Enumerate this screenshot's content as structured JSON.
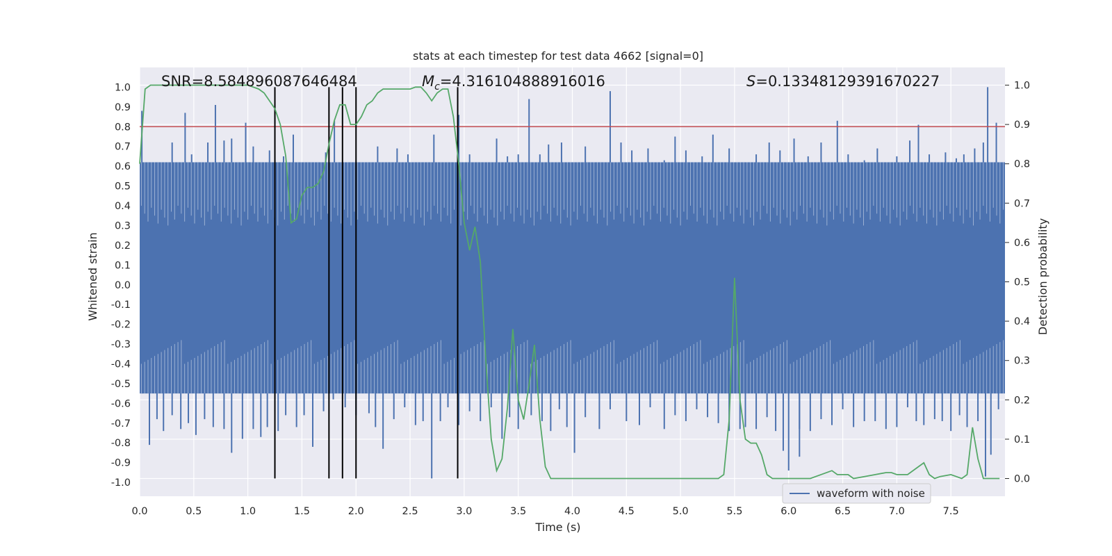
{
  "chart_data": {
    "type": "line",
    "title": "stats at each timestep for test data 4662 [signal=0]",
    "xlabel": "Time (s)",
    "ylabel": "Whitened strain",
    "y2label": "Detection probability",
    "xlim": [
      0.0,
      8.0
    ],
    "ylim": [
      -1.07,
      1.1
    ],
    "y2lim": [
      -0.045,
      1.045
    ],
    "xticks": [
      "0.0",
      "0.5",
      "1.0",
      "1.5",
      "2.0",
      "2.5",
      "3.0",
      "3.5",
      "4.0",
      "4.5",
      "5.0",
      "5.5",
      "6.0",
      "6.5",
      "7.0",
      "7.5"
    ],
    "yticks": [
      "1.0",
      "0.9",
      "0.8",
      "0.7",
      "0.6",
      "0.5",
      "0.4",
      "0.3",
      "0.2",
      "0.1",
      "0.0",
      "-0.1",
      "-0.2",
      "-0.3",
      "-0.4",
      "-0.5",
      "-0.6",
      "-0.7",
      "-0.8",
      "-0.9",
      "-1.0"
    ],
    "y2ticks": [
      "1.0",
      "0.9",
      "0.8",
      "0.7",
      "0.6",
      "0.5",
      "0.4",
      "0.3",
      "0.2",
      "0.1",
      "0.0"
    ],
    "annotations": {
      "snr": "SNR=8.584896087646484",
      "mc_symbol": "M",
      "mc_sub": "c",
      "mc_value": "=4.316104888916016",
      "s_symbol": "S",
      "s_value": "=0.13348129391670227"
    },
    "threshold": {
      "value": 0.8,
      "color": "#c44e52"
    },
    "event_lines": [
      1.25,
      1.75,
      1.875,
      2.0,
      2.94
    ],
    "legend": [
      {
        "label": "waveform with noise",
        "color": "#4c72b0"
      }
    ],
    "series": [
      {
        "name": "waveform with noise",
        "color": "#4c72b0",
        "envelope_high": 0.62,
        "envelope_low": -0.55,
        "spikes_up": [
          [
            0.02,
            0.88
          ],
          [
            0.1,
            0.58
          ],
          [
            0.17,
            0.62
          ],
          [
            0.23,
            0.55
          ],
          [
            0.3,
            0.72
          ],
          [
            0.37,
            0.6
          ],
          [
            0.42,
            0.87
          ],
          [
            0.48,
            0.66
          ],
          [
            0.55,
            0.62
          ],
          [
            0.63,
            0.72
          ],
          [
            0.7,
            0.91
          ],
          [
            0.78,
            0.73
          ],
          [
            0.85,
            0.74
          ],
          [
            0.92,
            0.62
          ],
          [
            0.98,
            0.82
          ],
          [
            1.05,
            0.7
          ],
          [
            1.12,
            0.61
          ],
          [
            1.2,
            0.68
          ],
          [
            1.28,
            0.55
          ],
          [
            1.33,
            0.65
          ],
          [
            1.42,
            0.76
          ],
          [
            1.5,
            0.57
          ],
          [
            1.58,
            0.61
          ],
          [
            1.65,
            0.58
          ],
          [
            1.72,
            0.67
          ],
          [
            1.8,
            0.83
          ],
          [
            1.86,
            0.62
          ],
          [
            1.95,
            0.6
          ],
          [
            2.02,
            0.55
          ],
          [
            2.1,
            0.58
          ],
          [
            2.2,
            0.7
          ],
          [
            2.3,
            0.62
          ],
          [
            2.38,
            0.69
          ],
          [
            2.48,
            0.66
          ],
          [
            2.55,
            0.62
          ],
          [
            2.62,
            0.57
          ],
          [
            2.72,
            0.76
          ],
          [
            2.8,
            0.61
          ],
          [
            2.9,
            0.57
          ],
          [
            2.95,
            0.86
          ],
          [
            3.05,
            0.66
          ],
          [
            3.15,
            0.59
          ],
          [
            3.3,
            0.74
          ],
          [
            3.4,
            0.65
          ],
          [
            3.5,
            0.66
          ],
          [
            3.6,
            0.94
          ],
          [
            3.7,
            0.66
          ],
          [
            3.78,
            0.71
          ],
          [
            3.9,
            0.72
          ],
          [
            4.0,
            0.62
          ],
          [
            4.12,
            0.7
          ],
          [
            4.22,
            0.62
          ],
          [
            4.35,
            0.98
          ],
          [
            4.45,
            0.72
          ],
          [
            4.55,
            0.68
          ],
          [
            4.7,
            0.69
          ],
          [
            4.85,
            0.63
          ],
          [
            4.95,
            0.75
          ],
          [
            5.05,
            0.68
          ],
          [
            5.2,
            0.65
          ],
          [
            5.3,
            0.76
          ],
          [
            5.45,
            0.69
          ],
          [
            5.6,
            0.62
          ],
          [
            5.7,
            0.66
          ],
          [
            5.82,
            0.72
          ],
          [
            5.92,
            0.68
          ],
          [
            6.05,
            0.74
          ],
          [
            6.18,
            0.65
          ],
          [
            6.3,
            0.72
          ],
          [
            6.45,
            0.83
          ],
          [
            6.55,
            0.66
          ],
          [
            6.7,
            0.63
          ],
          [
            6.82,
            0.69
          ],
          [
            6.9,
            0.62
          ],
          [
            7.0,
            0.65
          ],
          [
            7.12,
            0.73
          ],
          [
            7.2,
            0.81
          ],
          [
            7.3,
            0.66
          ],
          [
            7.45,
            0.67
          ],
          [
            7.55,
            0.64
          ],
          [
            7.62,
            0.66
          ],
          [
            7.72,
            0.69
          ],
          [
            7.8,
            0.72
          ],
          [
            7.84,
            1.0
          ],
          [
            7.92,
            0.82
          ],
          [
            7.97,
            0.6
          ]
        ],
        "spikes_down": [
          [
            0.02,
            -0.55
          ],
          [
            0.09,
            -0.81
          ],
          [
            0.16,
            -0.68
          ],
          [
            0.22,
            -0.74
          ],
          [
            0.3,
            -0.66
          ],
          [
            0.38,
            -0.73
          ],
          [
            0.45,
            -0.7
          ],
          [
            0.52,
            -0.76
          ],
          [
            0.6,
            -0.68
          ],
          [
            0.68,
            -0.72
          ],
          [
            0.78,
            -0.73
          ],
          [
            0.85,
            -0.85
          ],
          [
            0.95,
            -0.78
          ],
          [
            1.05,
            -0.73
          ],
          [
            1.12,
            -0.77
          ],
          [
            1.18,
            -0.72
          ],
          [
            1.28,
            -0.74
          ],
          [
            1.35,
            -0.66
          ],
          [
            1.45,
            -0.72
          ],
          [
            1.52,
            -0.66
          ],
          [
            1.6,
            -0.82
          ],
          [
            1.7,
            -0.64
          ],
          [
            1.79,
            -0.58
          ],
          [
            1.9,
            -0.62
          ],
          [
            2.0,
            -0.66
          ],
          [
            2.12,
            -0.65
          ],
          [
            2.18,
            -0.72
          ],
          [
            2.25,
            -0.83
          ],
          [
            2.35,
            -0.68
          ],
          [
            2.45,
            -0.62
          ],
          [
            2.55,
            -0.71
          ],
          [
            2.62,
            -0.69
          ],
          [
            2.7,
            -0.98
          ],
          [
            2.78,
            -0.69
          ],
          [
            2.85,
            -0.62
          ],
          [
            2.95,
            -0.71
          ],
          [
            3.05,
            -0.64
          ],
          [
            3.15,
            -0.69
          ],
          [
            3.25,
            -0.62
          ],
          [
            3.35,
            -0.78
          ],
          [
            3.42,
            -0.67
          ],
          [
            3.5,
            -0.73
          ],
          [
            3.62,
            -0.66
          ],
          [
            3.72,
            -0.69
          ],
          [
            3.8,
            -0.74
          ],
          [
            3.88,
            -0.63
          ],
          [
            3.95,
            -0.72
          ],
          [
            4.02,
            -0.85
          ],
          [
            4.12,
            -0.67
          ],
          [
            4.25,
            -0.73
          ],
          [
            4.35,
            -0.63
          ],
          [
            4.5,
            -0.69
          ],
          [
            4.62,
            -0.71
          ],
          [
            4.72,
            -0.62
          ],
          [
            4.85,
            -0.73
          ],
          [
            4.95,
            -0.66
          ],
          [
            5.05,
            -0.69
          ],
          [
            5.15,
            -0.63
          ],
          [
            5.25,
            -0.67
          ],
          [
            5.35,
            -0.7
          ],
          [
            5.45,
            -0.74
          ],
          [
            5.55,
            -0.73
          ],
          [
            5.6,
            -0.72
          ],
          [
            5.7,
            -0.73
          ],
          [
            5.8,
            -0.67
          ],
          [
            5.88,
            -0.74
          ],
          [
            5.95,
            -0.84
          ],
          [
            6.0,
            -0.94
          ],
          [
            6.1,
            -0.73
          ],
          [
            6.1,
            -0.87
          ],
          [
            6.2,
            -0.74
          ],
          [
            6.3,
            -0.68
          ],
          [
            6.4,
            -0.71
          ],
          [
            6.5,
            -0.63
          ],
          [
            6.6,
            -0.72
          ],
          [
            6.7,
            -0.69
          ],
          [
            6.8,
            -0.69
          ],
          [
            6.9,
            -0.73
          ],
          [
            7.0,
            -0.72
          ],
          [
            7.1,
            -0.62
          ],
          [
            7.18,
            -0.69
          ],
          [
            7.25,
            -0.71
          ],
          [
            7.35,
            -0.68
          ],
          [
            7.42,
            -0.69
          ],
          [
            7.5,
            -0.74
          ],
          [
            7.58,
            -0.66
          ],
          [
            7.65,
            -0.72
          ],
          [
            7.75,
            -0.69
          ],
          [
            7.82,
            -0.97
          ],
          [
            7.87,
            -0.86
          ],
          [
            7.94,
            -0.63
          ]
        ]
      },
      {
        "name": "detection probability",
        "axis": "right",
        "color": "#55a868",
        "x": [
          0.0,
          0.05,
          0.1,
          0.2,
          0.3,
          0.5,
          0.7,
          0.9,
          1.0,
          1.1,
          1.15,
          1.2,
          1.25,
          1.3,
          1.35,
          1.4,
          1.45,
          1.5,
          1.55,
          1.6,
          1.65,
          1.7,
          1.75,
          1.8,
          1.85,
          1.9,
          1.95,
          2.0,
          2.05,
          2.1,
          2.15,
          2.2,
          2.25,
          2.3,
          2.4,
          2.5,
          2.55,
          2.6,
          2.65,
          2.7,
          2.75,
          2.8,
          2.85,
          2.9,
          2.95,
          3.0,
          3.05,
          3.1,
          3.15,
          3.2,
          3.25,
          3.3,
          3.35,
          3.4,
          3.45,
          3.5,
          3.55,
          3.6,
          3.65,
          3.7,
          3.75,
          3.8,
          3.85,
          3.9,
          3.95,
          4.0,
          4.2,
          4.4,
          4.6,
          4.8,
          5.0,
          5.2,
          5.35,
          5.4,
          5.45,
          5.5,
          5.55,
          5.6,
          5.65,
          5.7,
          5.75,
          5.8,
          5.85,
          6.0,
          6.2,
          6.4,
          6.45,
          6.5,
          6.55,
          6.6,
          6.7,
          6.8,
          6.9,
          6.95,
          7.0,
          7.05,
          7.1,
          7.2,
          7.25,
          7.3,
          7.35,
          7.4,
          7.5,
          7.55,
          7.6,
          7.65,
          7.7,
          7.75,
          7.8,
          7.85,
          7.9,
          7.95
        ],
        "y": [
          0.8,
          0.99,
          1.0,
          1.0,
          1.0,
          1.0,
          1.0,
          1.0,
          1.0,
          0.99,
          0.98,
          0.96,
          0.94,
          0.9,
          0.82,
          0.65,
          0.66,
          0.72,
          0.74,
          0.74,
          0.75,
          0.78,
          0.85,
          0.91,
          0.95,
          0.95,
          0.9,
          0.9,
          0.92,
          0.95,
          0.96,
          0.98,
          0.99,
          0.99,
          0.99,
          0.99,
          0.995,
          0.995,
          0.98,
          0.96,
          0.98,
          0.99,
          0.99,
          0.92,
          0.8,
          0.65,
          0.58,
          0.64,
          0.55,
          0.3,
          0.1,
          0.02,
          0.05,
          0.18,
          0.38,
          0.2,
          0.15,
          0.24,
          0.34,
          0.15,
          0.03,
          0.0,
          0.0,
          0.0,
          0.0,
          0.0,
          0.0,
          0.0,
          0.0,
          0.0,
          0.0,
          0.0,
          0.0,
          0.01,
          0.15,
          0.51,
          0.2,
          0.1,
          0.09,
          0.09,
          0.06,
          0.01,
          0.0,
          0.0,
          0.0,
          0.02,
          0.01,
          0.01,
          0.01,
          0.0,
          0.005,
          0.01,
          0.015,
          0.015,
          0.01,
          0.01,
          0.01,
          0.03,
          0.04,
          0.01,
          0.0,
          0.005,
          0.01,
          0.005,
          0.0,
          0.01,
          0.13,
          0.05,
          0.0,
          0.0,
          0.0,
          0.0
        ]
      }
    ]
  }
}
